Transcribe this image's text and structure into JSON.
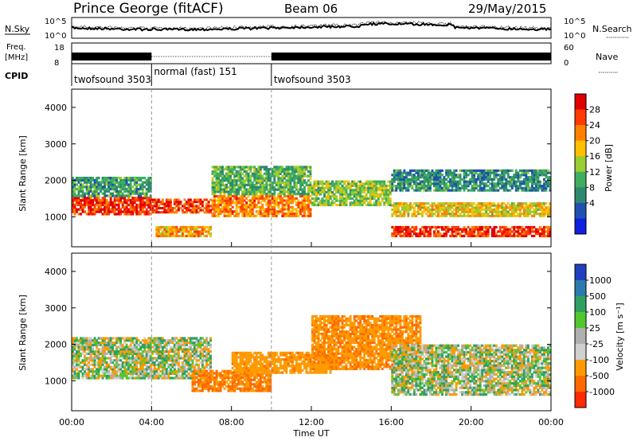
{
  "header": {
    "title": "Prince George (fitACF)",
    "beam": "Beam 06",
    "date": "29/May/2015"
  },
  "noise_panel": {
    "left_label": "N.Sky",
    "right_label": "N.Search",
    "left_ticks": [
      "10^5",
      "10^0"
    ],
    "right_ticks": [
      "10^5",
      "10^0"
    ]
  },
  "freq_panel": {
    "left_label_1": "Freq.",
    "left_label_2": "[MHz]",
    "left_ticks": [
      "18",
      "8"
    ],
    "right_label": "Nave",
    "right_ticks": [
      "60",
      "0"
    ]
  },
  "cpid": {
    "label": "CPID",
    "segments": [
      {
        "name": "twofsound 3503",
        "start": 0,
        "end": 4
      },
      {
        "name": "normal (fast) 151",
        "start": 4,
        "end": 10
      },
      {
        "name": "twofsound 3503",
        "start": 10,
        "end": 24
      }
    ]
  },
  "axes": {
    "xlabel": "Time UT",
    "x_ticks": [
      "00:00",
      "04:00",
      "08:00",
      "12:00",
      "16:00",
      "20:00",
      "00:00"
    ],
    "ylabel": "Slant Range [km]",
    "y_ticks": [
      "4000",
      "3000",
      "2000",
      "1000"
    ]
  },
  "power_scale": {
    "label": "Power [dB]",
    "ticks": [
      "28",
      "24",
      "20",
      "16",
      "12",
      "8",
      "4"
    ],
    "colors": [
      "#e00000",
      "#ff3a00",
      "#ff7f00",
      "#ffc000",
      "#9acd32",
      "#3fae5f",
      "#2d8a6e",
      "#2050b0",
      "#1020e0"
    ]
  },
  "velocity_scale": {
    "label": "Velocity [m s⁻¹]",
    "ticks": [
      "1000",
      "500",
      "100",
      "25",
      "-25",
      "-100",
      "-500",
      "-1000"
    ],
    "colors": [
      "#2040c0",
      "#2a7cae",
      "#2ea060",
      "#50c830",
      "#b0b0b0",
      "#d0d0d0",
      "#ff9a00",
      "#ff6a00",
      "#ff2a00"
    ]
  },
  "chart_data": [
    {
      "type": "heatmap",
      "name": "Power",
      "x_range_hours": [
        0,
        24
      ],
      "y_range_km": [
        180,
        4500
      ],
      "value_range": [
        0,
        30
      ],
      "bands": [
        {
          "t0": 0,
          "t1": 4,
          "r0": 1050,
          "r1": 1550,
          "value": 26
        },
        {
          "t0": 0,
          "t1": 4,
          "r0": 1550,
          "r1": 2100,
          "value": 10
        },
        {
          "t0": 4,
          "t1": 7,
          "r0": 1100,
          "r1": 1500,
          "value": 25
        },
        {
          "t0": 4.2,
          "t1": 7,
          "r0": 450,
          "r1": 750,
          "value": 20
        },
        {
          "t0": 7,
          "t1": 12,
          "r0": 1000,
          "r1": 1600,
          "value": 22
        },
        {
          "t0": 7,
          "t1": 12,
          "r0": 1600,
          "r1": 2400,
          "value": 12
        },
        {
          "t0": 12,
          "t1": 16,
          "r0": 1300,
          "r1": 2000,
          "value": 14
        },
        {
          "t0": 16,
          "t1": 24,
          "r0": 1000,
          "r1": 1400,
          "value": 18
        },
        {
          "t0": 16,
          "t1": 24,
          "r0": 450,
          "r1": 750,
          "value": 26
        },
        {
          "t0": 16,
          "t1": 24,
          "r0": 1700,
          "r1": 2300,
          "value": 9
        }
      ]
    },
    {
      "type": "heatmap",
      "name": "Velocity",
      "x_range_hours": [
        0,
        24
      ],
      "y_range_km": [
        180,
        4500
      ],
      "value_range": [
        -1000,
        1000
      ],
      "bands": [
        {
          "t0": 0,
          "t1": 7,
          "r0": 1050,
          "r1": 2200,
          "value": 0
        },
        {
          "t0": 6,
          "t1": 10,
          "r0": 700,
          "r1": 1300,
          "value": -300
        },
        {
          "t0": 8,
          "t1": 13,
          "r0": 1200,
          "r1": 1800,
          "value": -200
        },
        {
          "t0": 12,
          "t1": 17.5,
          "r0": 1300,
          "r1": 2800,
          "value": -250
        },
        {
          "t0": 16,
          "t1": 24,
          "r0": 600,
          "r1": 2000,
          "value": 0
        }
      ]
    }
  ]
}
